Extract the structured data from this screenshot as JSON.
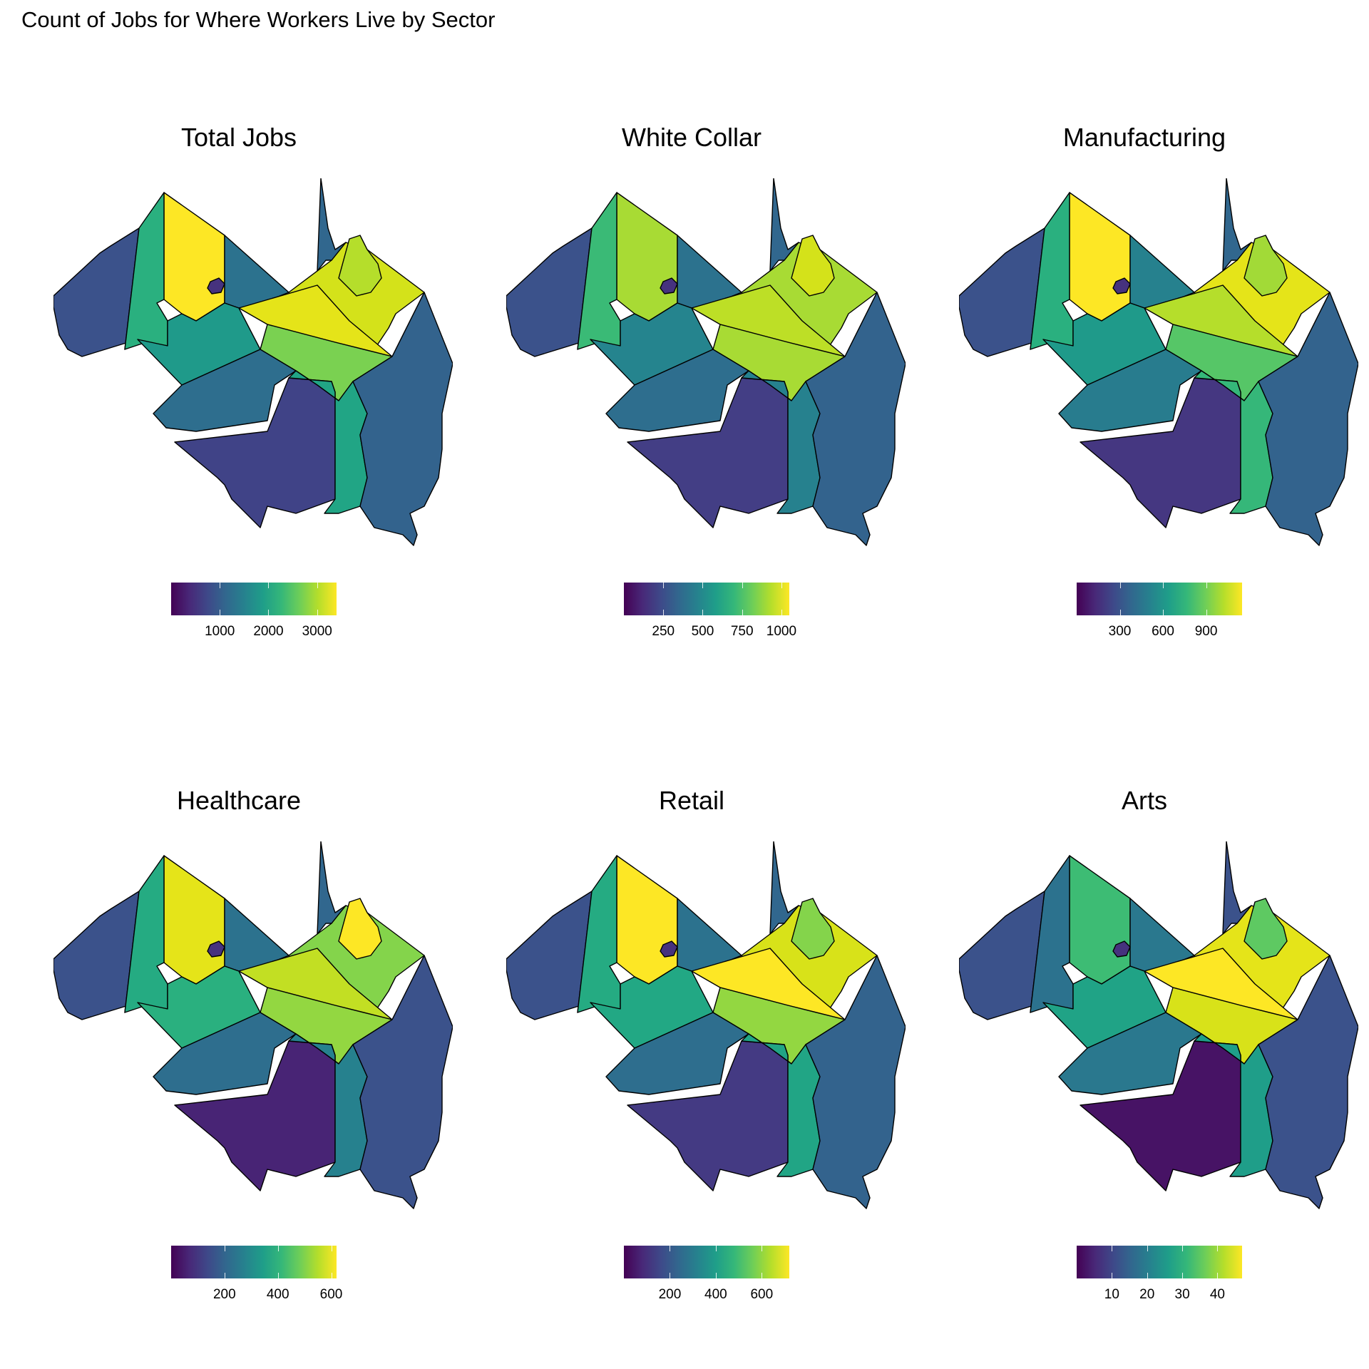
{
  "title": "Count of Jobs for Where Workers Live by Sector",
  "panels": [
    {
      "title": "Total Jobs",
      "legend": {
        "min": 0,
        "max": 3400,
        "ticks": [
          1000,
          2000,
          3000
        ]
      },
      "colors": {
        "nw": "#fde725",
        "w": "#3b528b",
        "wc": "#2ab07f",
        "n": "#2c728e",
        "cen": "#1f9a8a",
        "ne_big": "#d4e21a",
        "ne_top": "#31678e",
        "ne_in": "#b5de2b",
        "mid": "#e5e419",
        "sc": "#7ad151",
        "se_w": "#2e6e8e",
        "s": "#404387",
        "s_e": "#21a585",
        "e": "#33638d",
        "blob": "#46327e"
      }
    },
    {
      "title": "White Collar",
      "legend": {
        "min": 0,
        "max": 1050,
        "ticks": [
          250,
          500,
          750,
          1000
        ]
      },
      "colors": {
        "nw": "#a8db34",
        "w": "#3b528b",
        "wc": "#3aba76",
        "n": "#2c728e",
        "cen": "#25848e",
        "ne_big": "#a8db34",
        "ne_top": "#31678e",
        "ne_in": "#d4e21a",
        "mid": "#bddf26",
        "sc": "#a8db34",
        "se_w": "#2e6e8e",
        "s": "#433e85",
        "s_e": "#26818e",
        "e": "#33638d",
        "blob": "#46327e"
      }
    },
    {
      "title": "Manufacturing",
      "legend": {
        "min": 0,
        "max": 1150,
        "ticks": [
          300,
          600,
          900
        ]
      },
      "colors": {
        "nw": "#fde725",
        "w": "#3b528b",
        "wc": "#2ab07f",
        "n": "#26818e",
        "cen": "#1f9a8a",
        "ne_big": "#e5e419",
        "ne_top": "#31678e",
        "ne_in": "#a2da37",
        "mid": "#b5de2b",
        "sc": "#56c667",
        "se_w": "#287c8e",
        "s": "#453781",
        "s_e": "#35b779",
        "e": "#33638d",
        "blob": "#46327e"
      }
    },
    {
      "title": "Healthcare",
      "legend": {
        "min": 0,
        "max": 620,
        "ticks": [
          200,
          400,
          600
        ]
      },
      "colors": {
        "nw": "#e5e419",
        "w": "#3b528b",
        "wc": "#25ab82",
        "n": "#2c728e",
        "cen": "#2ab07f",
        "ne_big": "#84d44b",
        "ne_top": "#31678e",
        "ne_in": "#fde725",
        "mid": "#c2df23",
        "sc": "#93d741",
        "se_w": "#2e6e8e",
        "s": "#482475",
        "s_e": "#26818e",
        "e": "#3b528b",
        "blob": "#46327e"
      }
    },
    {
      "title": "Retail",
      "legend": {
        "min": 0,
        "max": 720,
        "ticks": [
          200,
          400,
          600
        ]
      },
      "colors": {
        "nw": "#fde725",
        "w": "#3b528b",
        "wc": "#25ab82",
        "n": "#2c728e",
        "cen": "#22a884",
        "ne_big": "#d8e219",
        "ne_top": "#31678e",
        "ne_in": "#84d44b",
        "mid": "#fde725",
        "sc": "#93d741",
        "se_w": "#2e6e8e",
        "s": "#443a83",
        "s_e": "#21a585",
        "e": "#33638d",
        "blob": "#46327e"
      }
    },
    {
      "title": "Arts",
      "legend": {
        "min": 0,
        "max": 47,
        "ticks": [
          10,
          20,
          30,
          40
        ]
      },
      "colors": {
        "nw": "#3dbc74",
        "w": "#3b528b",
        "wc": "#2c728e",
        "n": "#2a788e",
        "cen": "#20a386",
        "ne_big": "#e5e419",
        "ne_top": "#3b528b",
        "ne_in": "#5ec962",
        "mid": "#fde725",
        "sc": "#d8e219",
        "se_w": "#2a788e",
        "s": "#471365",
        "s_e": "#1f9e89",
        "e": "#3b528b",
        "blob": "#46327e"
      }
    }
  ]
}
